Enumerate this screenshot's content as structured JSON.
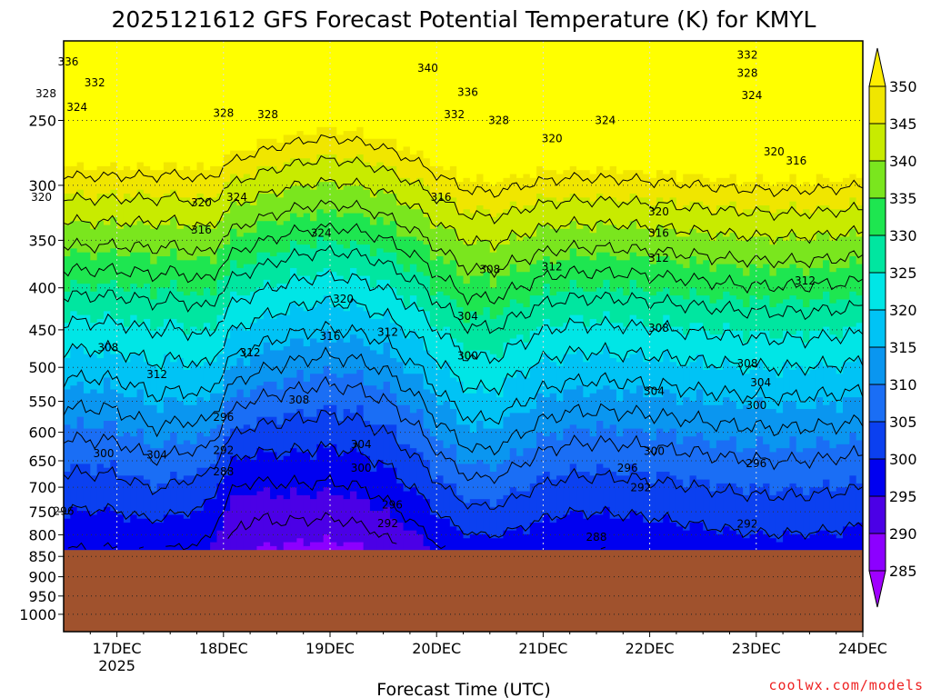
{
  "chart_data": {
    "type": "heatmap",
    "title": "2025121612 GFS Forecast Potential Temperature (K) for KMYL",
    "xlabel": "Forecast Time (UTC)",
    "ylabel": "",
    "credit": "coolwx.com/models",
    "x_ticks": [
      {
        "label": "17DEC",
        "sub": "2025",
        "t": 0
      },
      {
        "label": "18DEC",
        "sub": "",
        "t": 24
      },
      {
        "label": "19DEC",
        "sub": "",
        "t": 48
      },
      {
        "label": "20DEC",
        "sub": "",
        "t": 72
      },
      {
        "label": "21DEC",
        "sub": "",
        "t": 96
      },
      {
        "label": "22DEC",
        "sub": "",
        "t": 120
      },
      {
        "label": "23DEC",
        "sub": "",
        "t": 144
      },
      {
        "label": "24DEC",
        "sub": "",
        "t": 168
      }
    ],
    "x_range_hours": [
      -12,
      168
    ],
    "y_ticks_hpa": [
      250,
      300,
      350,
      400,
      450,
      500,
      550,
      600,
      650,
      700,
      750,
      800,
      850,
      900,
      950,
      1000
    ],
    "y_range_hpa": [
      200,
      1050
    ],
    "surface_pressure_hpa": 835,
    "colorbar": {
      "levels": [
        285,
        290,
        295,
        300,
        305,
        310,
        315,
        320,
        325,
        330,
        335,
        340,
        345,
        350
      ],
      "colors": [
        "#8c00ff",
        "#4b00e6",
        "#0000f0",
        "#0b40f0",
        "#1a6ef5",
        "#0a96f0",
        "#00c3f5",
        "#00e6e6",
        "#00e6a0",
        "#1ee650",
        "#7ae61e",
        "#c8eb00",
        "#f0e600",
        "#ffff00"
      ],
      "under_color": "#a000ff",
      "over_color": "#ffee00"
    },
    "contour_labels": [
      {
        "text": "336",
        "t": -11,
        "p": 212
      },
      {
        "text": "332",
        "t": -5,
        "p": 225
      },
      {
        "text": "328",
        "t": -16,
        "p": 232
      },
      {
        "text": "324",
        "t": -9,
        "p": 241
      },
      {
        "text": "328",
        "t": 24,
        "p": 245
      },
      {
        "text": "328",
        "t": 34,
        "p": 246
      },
      {
        "text": "340",
        "t": 70,
        "p": 216
      },
      {
        "text": "336",
        "t": 79,
        "p": 231
      },
      {
        "text": "332",
        "t": 76,
        "p": 246
      },
      {
        "text": "328",
        "t": 86,
        "p": 250
      },
      {
        "text": "320",
        "t": 98,
        "p": 263
      },
      {
        "text": "324",
        "t": 110,
        "p": 250
      },
      {
        "text": "332",
        "t": 142,
        "p": 208
      },
      {
        "text": "328",
        "t": 142,
        "p": 219
      },
      {
        "text": "324",
        "t": 143,
        "p": 233
      },
      {
        "text": "320",
        "t": 148,
        "p": 273
      },
      {
        "text": "316",
        "t": 153,
        "p": 280
      },
      {
        "text": "320",
        "t": -17,
        "p": 310
      },
      {
        "text": "320",
        "t": 19,
        "p": 315
      },
      {
        "text": "324",
        "t": 27,
        "p": 310
      },
      {
        "text": "316",
        "t": 19,
        "p": 340
      },
      {
        "text": "324",
        "t": 46,
        "p": 343
      },
      {
        "text": "316",
        "t": 73,
        "p": 310
      },
      {
        "text": "320",
        "t": 122,
        "p": 323
      },
      {
        "text": "316",
        "t": 122,
        "p": 343
      },
      {
        "text": "312",
        "t": 122,
        "p": 368
      },
      {
        "text": "308",
        "t": 84,
        "p": 380
      },
      {
        "text": "312",
        "t": 98,
        "p": 377
      },
      {
        "text": "312",
        "t": 155,
        "p": 392
      },
      {
        "text": "320",
        "t": 51,
        "p": 413
      },
      {
        "text": "304",
        "t": 79,
        "p": 433
      },
      {
        "text": "316",
        "t": 48,
        "p": 458
      },
      {
        "text": "312",
        "t": 61,
        "p": 453
      },
      {
        "text": "308",
        "t": 122,
        "p": 448
      },
      {
        "text": "308",
        "t": -2,
        "p": 473
      },
      {
        "text": "312",
        "t": 30,
        "p": 480
      },
      {
        "text": "300",
        "t": 79,
        "p": 484
      },
      {
        "text": "312",
        "t": 9,
        "p": 510
      },
      {
        "text": "308",
        "t": 142,
        "p": 495
      },
      {
        "text": "304",
        "t": 145,
        "p": 522
      },
      {
        "text": "308",
        "t": 41,
        "p": 548
      },
      {
        "text": "304",
        "t": 121,
        "p": 535
      },
      {
        "text": "300",
        "t": 144,
        "p": 556
      },
      {
        "text": "296",
        "t": 24,
        "p": 575
      },
      {
        "text": "304",
        "t": 55,
        "p": 621
      },
      {
        "text": "292",
        "t": 24,
        "p": 631
      },
      {
        "text": "300",
        "t": -3,
        "p": 637
      },
      {
        "text": "304",
        "t": 9,
        "p": 639
      },
      {
        "text": "300",
        "t": 121,
        "p": 633
      },
      {
        "text": "300",
        "t": 55,
        "p": 663
      },
      {
        "text": "296",
        "t": 115,
        "p": 663
      },
      {
        "text": "296",
        "t": 144,
        "p": 655
      },
      {
        "text": "288",
        "t": 24,
        "p": 670
      },
      {
        "text": "292",
        "t": 118,
        "p": 701
      },
      {
        "text": "296",
        "t": -12,
        "p": 749
      },
      {
        "text": "296",
        "t": 62,
        "p": 736
      },
      {
        "text": "292",
        "t": 61,
        "p": 775
      },
      {
        "text": "292",
        "t": 142,
        "p": 776
      },
      {
        "text": "288",
        "t": 108,
        "p": 805
      }
    ]
  }
}
